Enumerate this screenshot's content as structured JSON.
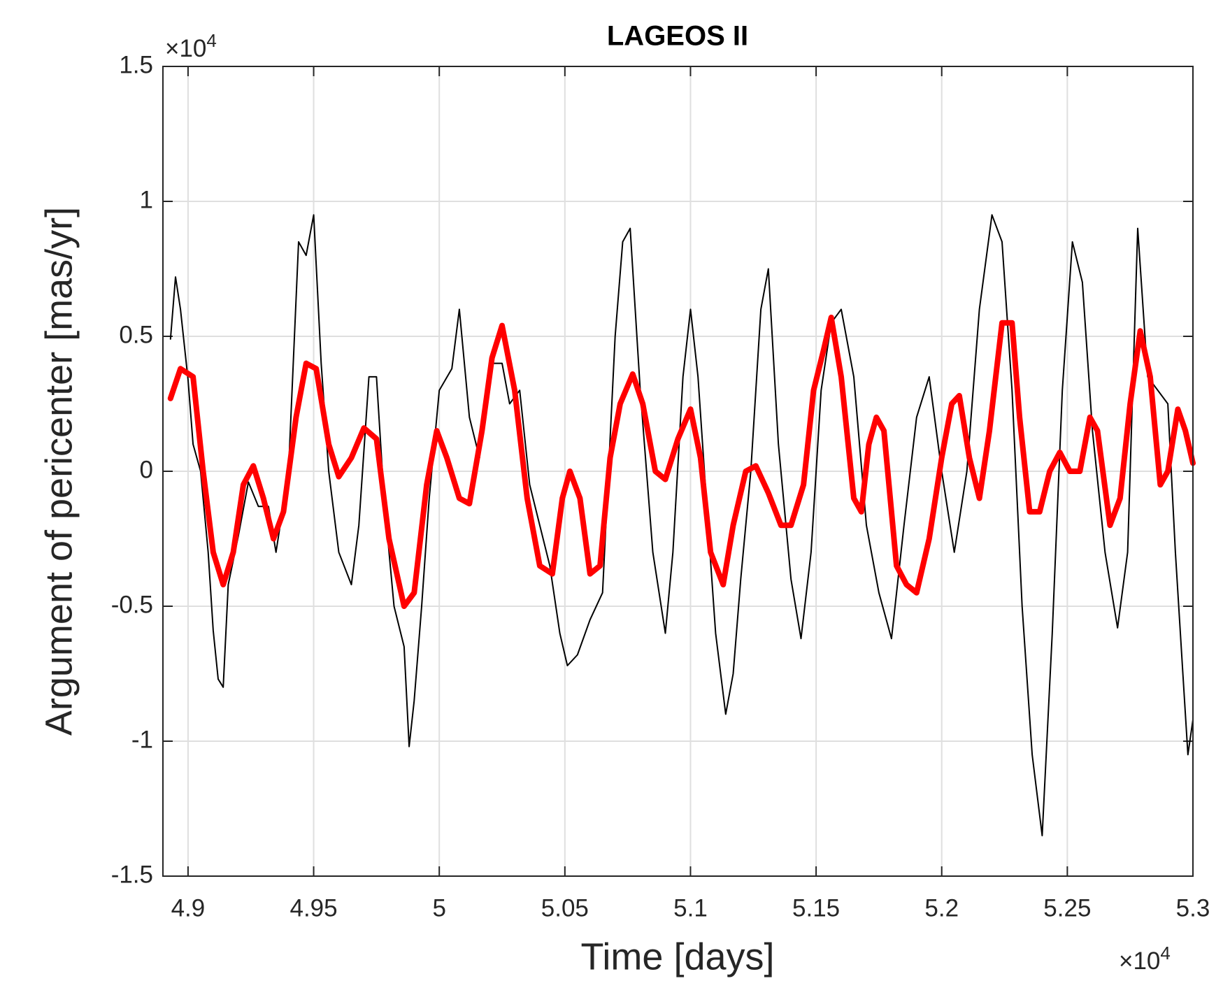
{
  "chart_data": {
    "type": "line",
    "title": "LAGEOS II",
    "x_label": "Time [days]",
    "y_label": "Argument of pericenter  [mas/yr]",
    "x_multiplier": {
      "base": "×10",
      "exponent": "4"
    },
    "y_multiplier": {
      "base": "×10",
      "exponent": "4"
    },
    "xlim": [
      4.89,
      5.3
    ],
    "ylim": [
      -1.5,
      1.5
    ],
    "xticks": [
      4.9,
      4.95,
      5,
      5.05,
      5.1,
      5.15,
      5.2,
      5.25,
      5.3
    ],
    "yticks": [
      -1.5,
      -1,
      -0.5,
      0,
      0.5,
      1,
      1.5
    ],
    "grid": true,
    "series": [
      {
        "color": "#000000",
        "width": 2,
        "x": [
          4.893,
          4.895,
          4.897,
          4.9,
          4.902,
          4.905,
          4.908,
          4.91,
          4.912,
          4.914,
          4.916,
          4.92,
          4.924,
          4.928,
          4.932,
          4.935,
          4.94,
          4.944,
          4.947,
          4.95,
          4.953,
          4.956,
          4.96,
          4.965,
          4.968,
          4.972,
          4.975,
          4.978,
          4.982,
          4.986,
          4.988,
          4.99,
          4.993,
          4.996,
          5.0,
          5.005,
          5.008,
          5.012,
          5.016,
          5.02,
          5.025,
          5.028,
          5.032,
          5.036,
          5.04,
          5.044,
          5.048,
          5.051,
          5.055,
          5.06,
          5.065,
          5.07,
          5.073,
          5.076,
          5.08,
          5.085,
          5.09,
          5.093,
          5.097,
          5.1,
          5.103,
          5.107,
          5.11,
          5.114,
          5.117,
          5.12,
          5.124,
          5.128,
          5.131,
          5.135,
          5.14,
          5.144,
          5.148,
          5.152,
          5.156,
          5.16,
          5.165,
          5.17,
          5.175,
          5.18,
          5.185,
          5.19,
          5.195,
          5.2,
          5.205,
          5.21,
          5.215,
          5.22,
          5.224,
          5.228,
          5.232,
          5.236,
          5.24,
          5.244,
          5.248,
          5.252,
          5.256,
          5.26,
          5.265,
          5.27,
          5.274,
          5.278,
          5.282,
          5.286,
          5.29,
          5.293,
          5.296,
          5.298,
          5.3
        ],
        "values": [
          0.49,
          0.72,
          0.6,
          0.34,
          0.1,
          0,
          -0.3,
          -0.59,
          -0.77,
          -0.8,
          -0.42,
          -0.24,
          -0.04,
          -0.13,
          -0.13,
          -0.3,
          0.0,
          0.85,
          0.8,
          0.95,
          0.4,
          0.0,
          -0.3,
          -0.42,
          -0.2,
          0.35,
          0.35,
          -0.1,
          -0.5,
          -0.65,
          -1.02,
          -0.85,
          -0.5,
          -0.1,
          0.3,
          0.38,
          0.6,
          0.2,
          0.05,
          0.4,
          0.4,
          0.25,
          0.3,
          -0.05,
          -0.2,
          -0.35,
          -0.6,
          -0.72,
          -0.68,
          -0.55,
          -0.45,
          0.5,
          0.85,
          0.9,
          0.3,
          -0.3,
          -0.6,
          -0.3,
          0.35,
          0.6,
          0.35,
          -0.2,
          -0.6,
          -0.9,
          -0.75,
          -0.4,
          0.0,
          0.6,
          0.75,
          0.1,
          -0.4,
          -0.62,
          -0.3,
          0.3,
          0.55,
          0.6,
          0.35,
          -0.2,
          -0.45,
          -0.62,
          -0.2,
          0.2,
          0.35,
          0.0,
          -0.3,
          0.0,
          0.6,
          0.95,
          0.85,
          0.3,
          -0.5,
          -1.05,
          -1.35,
          -0.6,
          0.3,
          0.85,
          0.7,
          0.15,
          -0.3,
          -0.58,
          -0.3,
          0.9,
          0.35,
          0.3,
          0.25,
          -0.3,
          -0.75,
          -1.05,
          -0.92
        ]
      },
      {
        "color": "#ff0000",
        "width": 8,
        "x": [
          4.893,
          4.897,
          4.902,
          4.906,
          4.91,
          4.914,
          4.918,
          4.922,
          4.926,
          4.93,
          4.934,
          4.938,
          4.943,
          4.947,
          4.951,
          4.956,
          4.96,
          4.965,
          4.97,
          4.975,
          4.98,
          4.986,
          4.99,
          4.995,
          4.999,
          5.003,
          5.008,
          5.012,
          5.017,
          5.021,
          5.025,
          5.03,
          5.035,
          5.04,
          5.045,
          5.049,
          5.052,
          5.056,
          5.06,
          5.064,
          5.068,
          5.072,
          5.077,
          5.081,
          5.086,
          5.09,
          5.095,
          5.1,
          5.104,
          5.108,
          5.113,
          5.117,
          5.122,
          5.126,
          5.131,
          5.136,
          5.14,
          5.145,
          5.149,
          5.153,
          5.156,
          5.16,
          5.165,
          5.168,
          5.171,
          5.174,
          5.177,
          5.182,
          5.186,
          5.19,
          5.195,
          5.2,
          5.204,
          5.207,
          5.211,
          5.215,
          5.219,
          5.224,
          5.228,
          5.231,
          5.235,
          5.239,
          5.243,
          5.247,
          5.251,
          5.255,
          5.259,
          5.262,
          5.267,
          5.271,
          5.275,
          5.279,
          5.283,
          5.287,
          5.29,
          5.294,
          5.297,
          5.3
        ],
        "values": [
          0.27,
          0.38,
          0.35,
          0.0,
          -0.3,
          -0.42,
          -0.3,
          -0.05,
          0.02,
          -0.1,
          -0.25,
          -0.15,
          0.2,
          0.4,
          0.38,
          0.1,
          -0.02,
          0.05,
          0.16,
          0.12,
          -0.25,
          -0.5,
          -0.45,
          -0.05,
          0.15,
          0.05,
          -0.1,
          -0.12,
          0.15,
          0.42,
          0.54,
          0.3,
          -0.1,
          -0.35,
          -0.38,
          -0.1,
          0.0,
          -0.1,
          -0.38,
          -0.35,
          0.05,
          0.25,
          0.36,
          0.25,
          0.0,
          -0.03,
          0.12,
          0.23,
          0.05,
          -0.3,
          -0.42,
          -0.2,
          0.0,
          0.02,
          -0.08,
          -0.2,
          -0.2,
          -0.05,
          0.3,
          0.45,
          0.57,
          0.35,
          -0.1,
          -0.15,
          0.1,
          0.2,
          0.15,
          -0.35,
          -0.42,
          -0.45,
          -0.25,
          0.05,
          0.25,
          0.28,
          0.05,
          -0.1,
          0.15,
          0.55,
          0.55,
          0.2,
          -0.15,
          -0.15,
          0.0,
          0.07,
          0.0,
          0.0,
          0.2,
          0.15,
          -0.2,
          -0.1,
          0.25,
          0.52,
          0.35,
          -0.05,
          0.0,
          0.23,
          0.15,
          0.03
        ]
      }
    ]
  }
}
